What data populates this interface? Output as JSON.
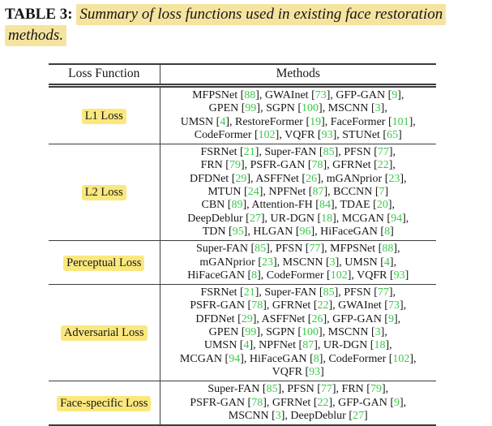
{
  "caption": {
    "label": "TABLE 3:",
    "text": "Summary of loss functions used in existing face restoration methods."
  },
  "table": {
    "headers": [
      "Loss Function",
      "Methods"
    ],
    "rows": [
      {
        "label": "L1 Loss",
        "method_lines": [
          "MFPSNet [88], GWAInet [73], GFP-GAN [9],",
          "GPEN [99], SGPN [100], MSCNN [3],",
          "UMSN [4], RestoreFormer [19], FaceFormer [101],",
          "CodeFormer [102], VQFR [93], STUNet [65]"
        ]
      },
      {
        "label": "L2 Loss",
        "method_lines": [
          "FSRNet [21], Super-FAN [85], PFSN [77],",
          "FRN [79], PSFR-GAN [78], GFRNet [22],",
          "DFDNet [29], ASFFNet [26], mGANprior [23],",
          "MTUN [24], NPFNet [87], BCCNN [7]",
          "CBN [89], Attention-FH [84], TDAE [20],",
          "DeepDeblur [27], UR-DGN [18], MCGAN [94],",
          "TDN [95], HLGAN [96], HiFaceGAN [8]"
        ]
      },
      {
        "label": "Perceptual Loss",
        "method_lines": [
          "Super-FAN [85], PFSN [77], MFPSNet [88],",
          "mGANprior [23], MSCNN [3], UMSN [4],",
          "HiFaceGAN [8], CodeFormer [102], VQFR [93]"
        ]
      },
      {
        "label": "Adversarial Loss",
        "method_lines": [
          "FSRNet [21], Super-FAN [85], PFSN [77],",
          "PSFR-GAN [78], GFRNet [22], GWAInet [73],",
          "DFDNet [29], ASFFNet [26], GFP-GAN [9],",
          "GPEN [99], SGPN [100], MSCNN [3],",
          "UMSN [4], NPFNet [87], UR-DGN [18],",
          "MCGAN [94], HiFaceGAN [8], CodeFormer [102],",
          "VQFR [93]"
        ]
      },
      {
        "label": "Face-specific Loss",
        "method_lines": [
          "Super-FAN [85], PFSN [77], FRN [79],",
          "PSFR-GAN [78], GFRNet [22], GFP-GAN [9],",
          "MSCNN [3], DeepDeblur [27]"
        ]
      }
    ]
  },
  "colors": {
    "citation_green": "#3bc84a",
    "caption_highlight": "#f5e4a0",
    "label_highlight": "#fae87e",
    "rule_color": "#3c3c3c"
  }
}
